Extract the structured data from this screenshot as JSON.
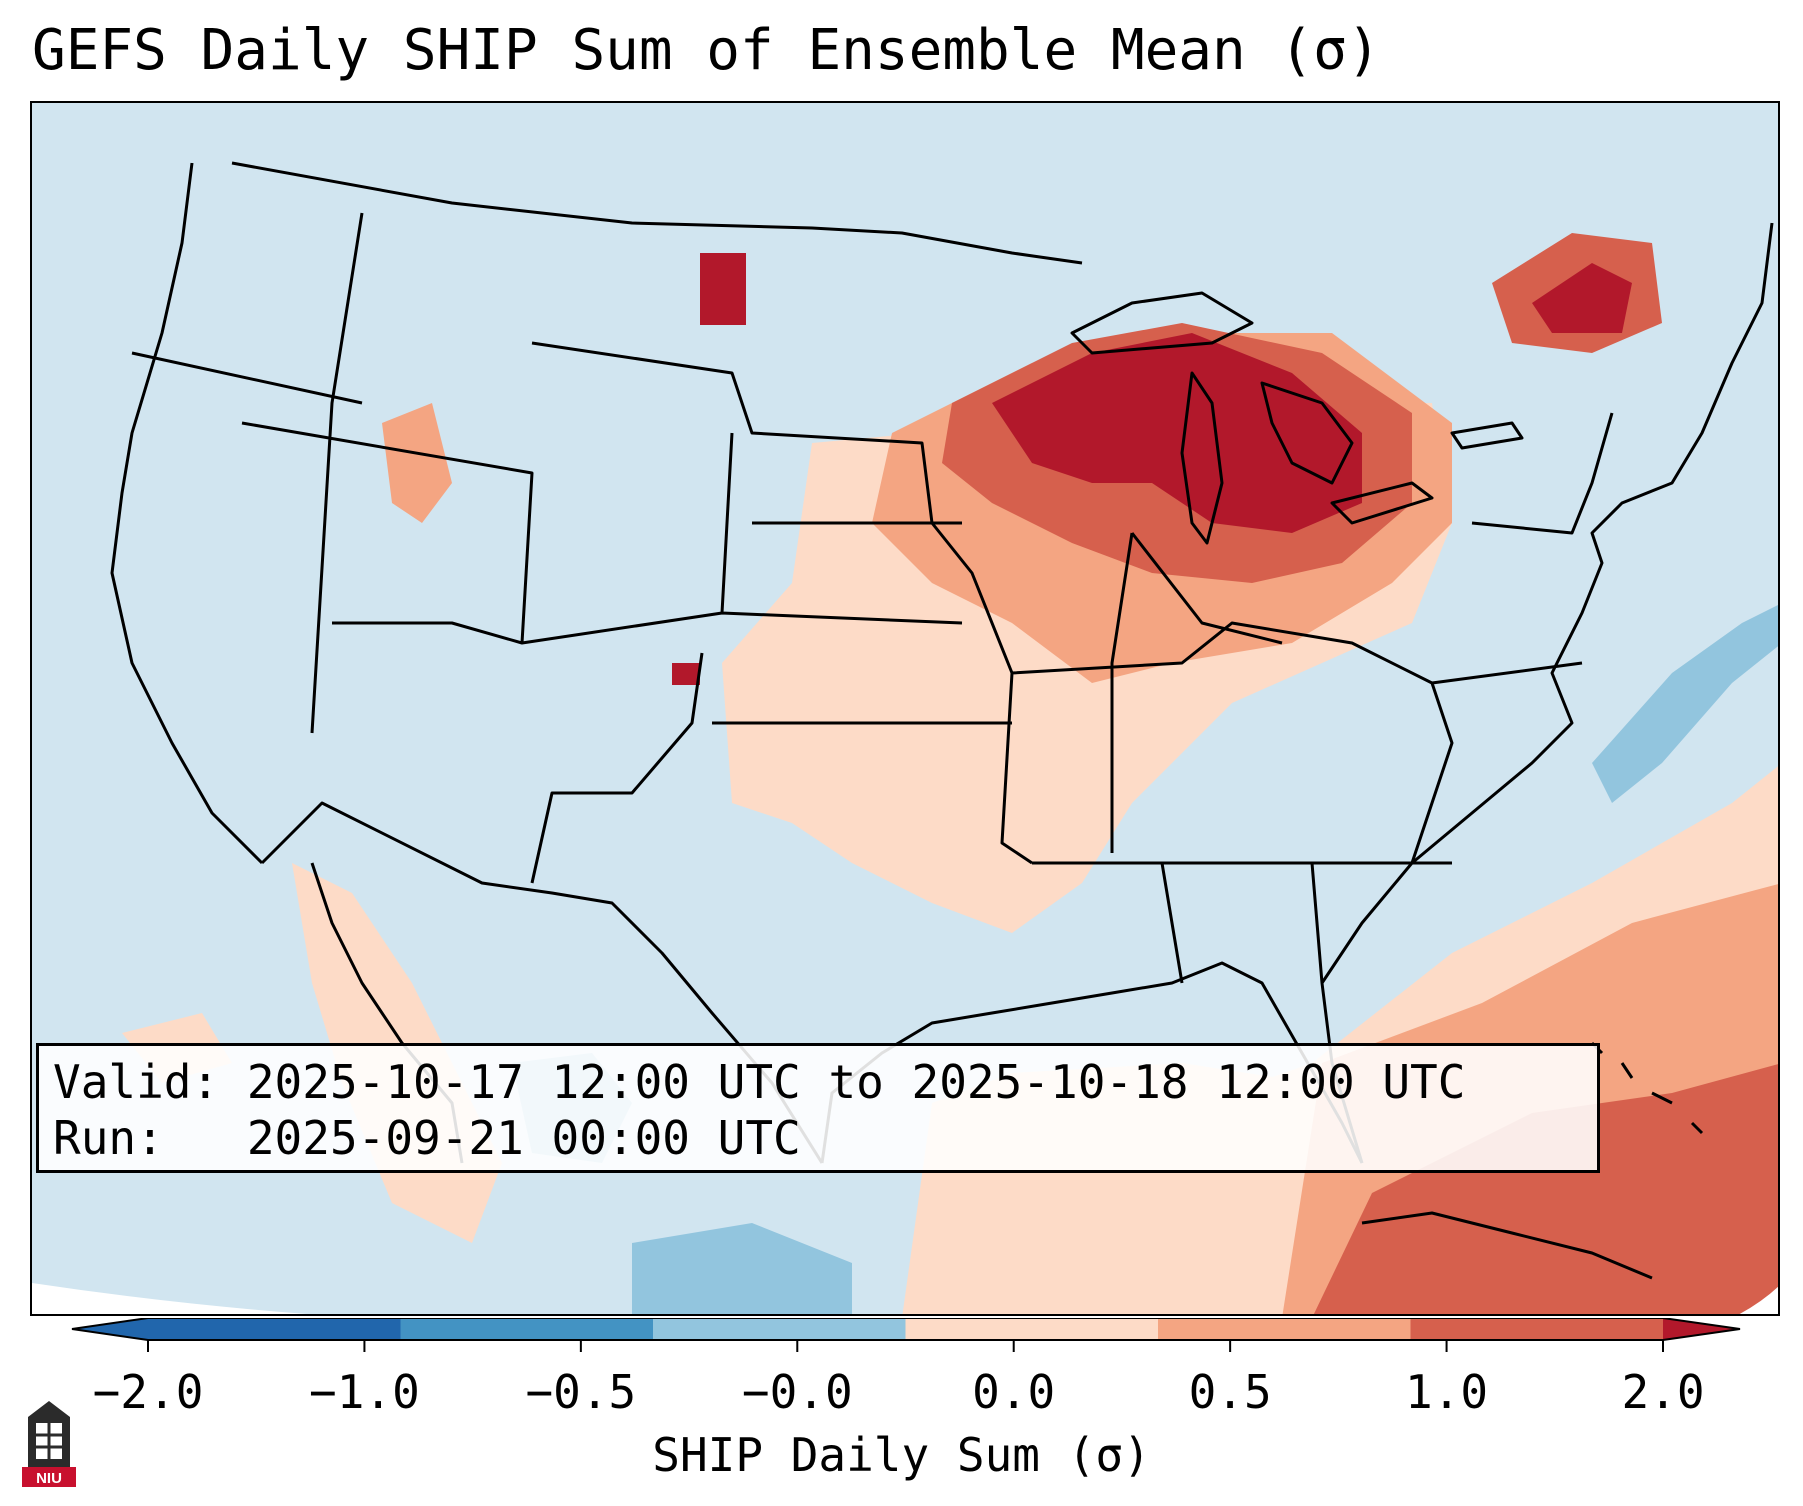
{
  "title": "GEFS Daily SHIP Sum of Ensemble Mean (σ)",
  "info": {
    "valid": "Valid: 2025-10-17 12:00 UTC to 2025-10-18 12:00 UTC",
    "run": "Run:   2025-09-21 00:00 UTC"
  },
  "colorbar": {
    "label": "SHIP Daily Sum (σ)",
    "ticks": [
      "−2.0",
      "−1.0",
      "−0.5",
      "−0.0",
      "0.0",
      "0.5",
      "1.0",
      "2.0"
    ],
    "colors": [
      "#2166ac",
      "#4393c3",
      "#92c5de",
      "#d1e5f0",
      "#fddbc7",
      "#f4a582",
      "#d6604d",
      "#b2182b"
    ],
    "extend": "both"
  },
  "logo": {
    "text": "NIU",
    "icon": "niu-logo-icon"
  }
}
